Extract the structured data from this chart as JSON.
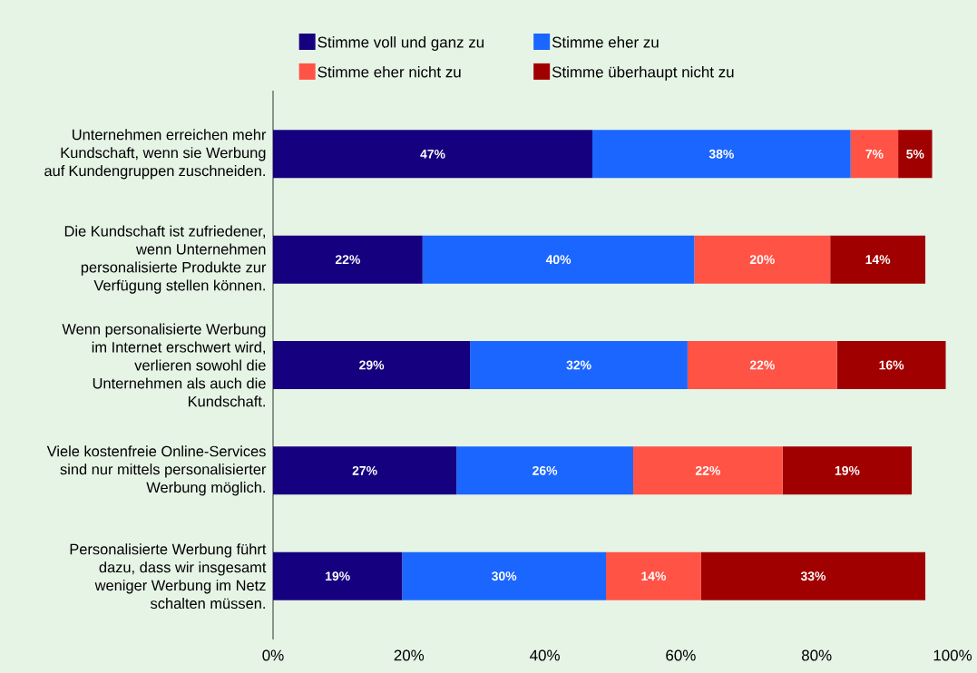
{
  "chart_data": {
    "type": "bar",
    "orientation": "horizontal",
    "stacked": true,
    "categories": [
      "Unternehmen erreichen mehr Kundschaft, wenn sie Werbung auf Kundengruppen zuschneiden.",
      "Die Kundschaft ist zufriedener, wenn Unternehmen personalisierte Produkte zur Verfügung stellen können.",
      "Wenn personalisierte Werbung im Internet erschwert wird, verlieren sowohl die Unternehmen als auch die Kundschaft.",
      "Viele kostenfreie Online-Services sind nur mittels personalisierter Werbung möglich.",
      "Personalisierte Werbung führt dazu, dass wir insgesamt weniger Werbung im Netz schalten müssen."
    ],
    "series": [
      {
        "name": "Stimme voll und ganz zu",
        "color": "#15007f",
        "values": [
          47,
          22,
          29,
          27,
          19
        ],
        "value_labels": [
          "47%",
          "22%",
          "29%",
          "27%",
          "19%"
        ]
      },
      {
        "name": "Stimme eher zu",
        "color": "#1a66ff",
        "values": [
          38,
          40,
          32,
          26,
          30
        ],
        "value_labels": [
          "38%",
          "40%",
          "32%",
          "26%",
          "30%"
        ]
      },
      {
        "name": "Stimme eher nicht zu",
        "color": "#ff5346",
        "values": [
          7,
          20,
          22,
          22,
          14
        ],
        "value_labels": [
          "7%",
          "20%",
          "22%",
          "22%",
          "14%"
        ]
      },
      {
        "name": "Stimme überhaupt nicht zu",
        "color": "#a00000",
        "values": [
          5,
          14,
          16,
          19,
          33
        ],
        "value_labels": [
          "5%",
          "14%",
          "16%",
          "19%",
          "33%"
        ]
      }
    ],
    "xlim": [
      0,
      100
    ],
    "xticks": [
      {
        "value": 0,
        "label": "0%"
      },
      {
        "value": 20,
        "label": "20%"
      },
      {
        "value": 40,
        "label": "40%"
      },
      {
        "value": 60,
        "label": "60%"
      },
      {
        "value": 80,
        "label": "80%"
      },
      {
        "value": 100,
        "label": "100%"
      }
    ],
    "legend": "top"
  }
}
